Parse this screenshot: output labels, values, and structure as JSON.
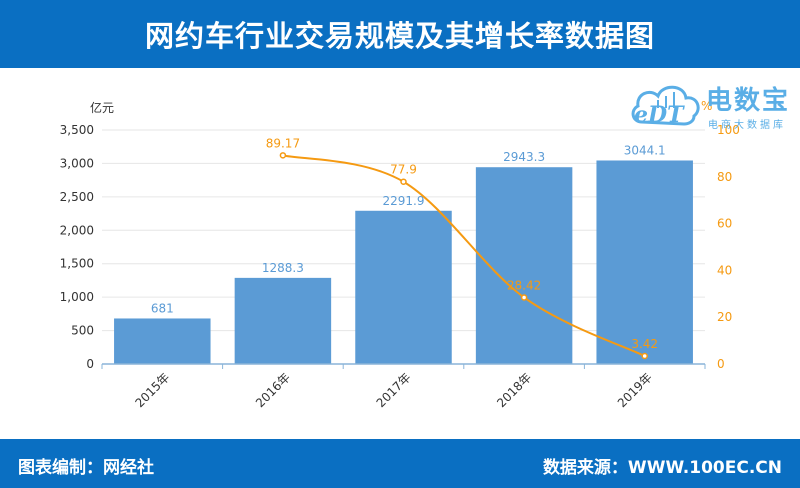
{
  "header": {
    "title": "网约车行业交易规模及其增长率数据图"
  },
  "footer": {
    "credit": "图表编制：网经社",
    "source": "数据来源：WWW.100EC.CN"
  },
  "logo": {
    "brand": "电数宝",
    "sub": "电商大数据库",
    "mark": "eDT"
  },
  "chart_data": {
    "type": "bar",
    "categories": [
      "2015年",
      "2016年",
      "2017年",
      "2018年",
      "2019年"
    ],
    "series": [
      {
        "values": [
          681,
          1288.3,
          2291.9,
          2943.3,
          3044.1
        ],
        "axis": "left",
        "color": "#5b9bd5",
        "type": "bar"
      },
      {
        "values": [
          null,
          89.17,
          77.9,
          28.42,
          3.42
        ],
        "axis": "right",
        "color": "#f59a12",
        "type": "line"
      }
    ],
    "ylabel": "亿元",
    "y2label": "%",
    "ylim": [
      0,
      3500
    ],
    "yticks": [
      0,
      500,
      1000,
      1500,
      2000,
      2500,
      3000,
      3500
    ],
    "ytick_labels": [
      "0",
      "500",
      "1,000",
      "1,500",
      "2,000",
      "2,500",
      "3,000",
      "3,500"
    ],
    "y2lim": [
      0,
      100
    ],
    "y2ticks": [
      0,
      20,
      40,
      60,
      80,
      100
    ],
    "bar_labels": [
      "681",
      "1288.3",
      "2291.9",
      "2943.3",
      "3044.1"
    ],
    "line_labels": [
      "",
      "89.17",
      "77.9",
      "28.42",
      "3.42"
    ],
    "grid": true
  },
  "colors": {
    "header": "#0a6fc2",
    "bar": "#5b9bd5",
    "line": "#f59a12",
    "axis_right": "#f59a12"
  }
}
